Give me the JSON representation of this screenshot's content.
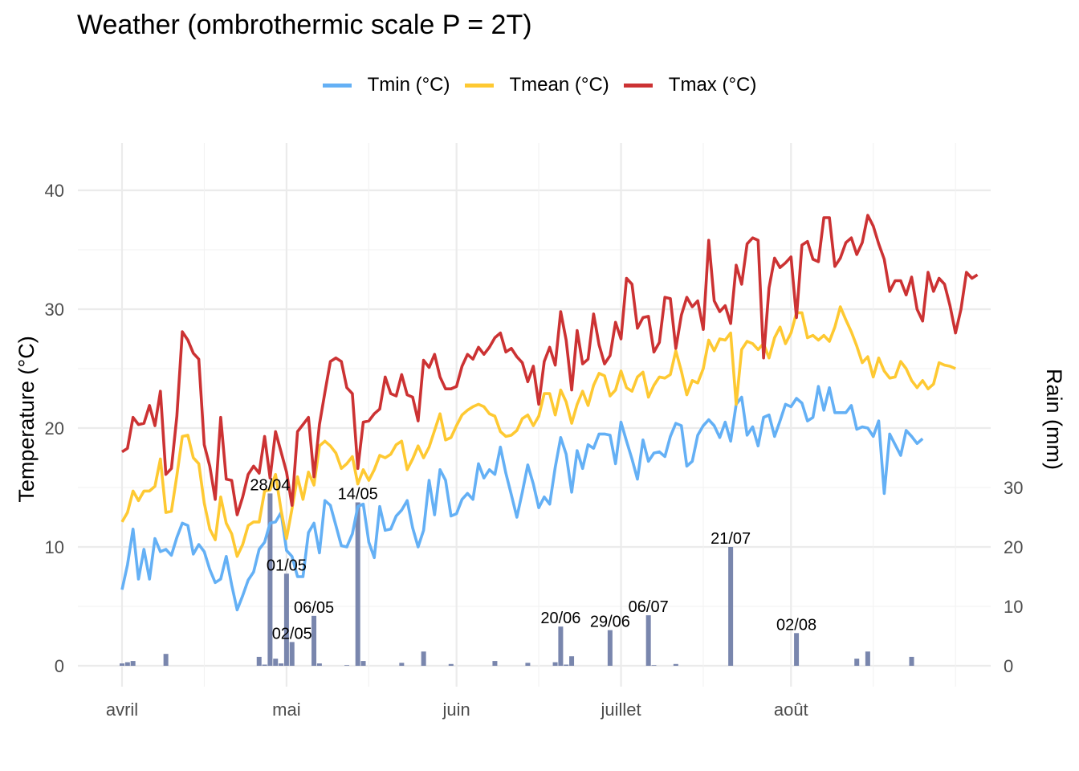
{
  "chart_data": {
    "type": "line",
    "title": "Weather (ombrothermic scale P = 2T)",
    "xlabel": "",
    "ylabel": "Temperature (°C)",
    "y2label": "Rain (mm)",
    "ylim": [
      0,
      44
    ],
    "y2lim": [
      0,
      88
    ],
    "y_ticks": [
      0,
      10,
      20,
      30,
      40
    ],
    "y2_ticks": [
      0,
      10,
      20,
      30
    ],
    "x_start": "2024-04-01",
    "x_ticks": [
      {
        "day": 0,
        "label": "avril"
      },
      {
        "day": 30,
        "label": "mai"
      },
      {
        "day": 61,
        "label": "juin"
      },
      {
        "day": 91,
        "label": "juillet"
      },
      {
        "day": 122,
        "label": "août"
      }
    ],
    "x_minor_days": [
      15,
      45,
      76,
      106,
      137,
      152
    ],
    "legend_position": "top",
    "grid": true,
    "series": [
      {
        "name": "Tmin (°C)",
        "color": "#64b0f5",
        "values": [
          6.4,
          8.5,
          11.5,
          7.3,
          9.8,
          7.3,
          10.7,
          9.6,
          9.8,
          9.3,
          10.8,
          12.0,
          11.8,
          9.4,
          10.2,
          9.6,
          8.1,
          7.0,
          7.3,
          9.2,
          6.8,
          4.7,
          5.9,
          7.2,
          7.9,
          9.8,
          10.4,
          12.0,
          12.1,
          12.9,
          9.7,
          9.2,
          7.5,
          7.5,
          11.2,
          12.0,
          9.5,
          13.9,
          13.5,
          11.8,
          10.1,
          10.0,
          11.1,
          13.4,
          13.6,
          10.4,
          9.1,
          13.4,
          11.4,
          11.5,
          12.6,
          13.1,
          13.9,
          11.6,
          10.0,
          11.4,
          15.6,
          12.7,
          16.5,
          15.6,
          12.6,
          12.8,
          14.0,
          14.5,
          14.0,
          17.0,
          15.8,
          16.5,
          16.1,
          18.4,
          16.2,
          14.4,
          12.5,
          14.6,
          16.9,
          15.3,
          13.3,
          14.2,
          13.6,
          16.7,
          19.2,
          17.8,
          14.6,
          18.1,
          16.6,
          18.6,
          18.3,
          19.5,
          19.5,
          19.4,
          17.0,
          20.5,
          18.9,
          17.4,
          15.7,
          19.0,
          17.2,
          17.9,
          18.0,
          17.6,
          19.3,
          20.4,
          20.2,
          16.8,
          17.2,
          19.4,
          20.2,
          20.7,
          20.2,
          19.2,
          20.5,
          18.9,
          22.0,
          22.6,
          19.4,
          20.1,
          18.5,
          20.9,
          21.1,
          19.3,
          20.6,
          22.0,
          21.8,
          22.5,
          22.1,
          20.6,
          20.9,
          23.5,
          21.5,
          23.4,
          21.3,
          21.3,
          21.3,
          21.9,
          19.9,
          20.1,
          20.0,
          19.3,
          20.6,
          14.5,
          19.5,
          18.6,
          17.7,
          19.8,
          19.3,
          18.7,
          19.1
        ]
      },
      {
        "name": "Tmean (°C)",
        "color": "#fec932",
        "values": [
          12.1,
          12.9,
          14.7,
          13.9,
          14.7,
          14.7,
          15.1,
          17.4,
          12.9,
          13.0,
          16.0,
          19.3,
          19.4,
          17.5,
          17.0,
          13.7,
          11.5,
          10.6,
          14.2,
          12.0,
          11.1,
          9.2,
          10.2,
          11.8,
          12.1,
          12.1,
          14.7,
          14.8,
          16.1,
          13.1,
          10.7,
          13.2,
          15.9,
          14.0,
          16.3,
          15.2,
          18.5,
          18.9,
          18.5,
          17.9,
          16.6,
          17.0,
          17.6,
          15.3,
          16.5,
          15.6,
          16.5,
          17.7,
          17.5,
          17.8,
          18.6,
          18.9,
          16.5,
          17.4,
          18.5,
          17.5,
          18.4,
          19.8,
          21.2,
          19.0,
          19.2,
          20.2,
          21.1,
          21.5,
          21.8,
          22.0,
          21.8,
          21.2,
          21.0,
          19.7,
          19.3,
          19.4,
          19.8,
          20.8,
          21.1,
          20.2,
          21.0,
          22.9,
          22.9,
          21.1,
          23.2,
          22.2,
          20.4,
          22.0,
          23.1,
          21.9,
          23.6,
          24.6,
          24.4,
          22.7,
          23.2,
          24.8,
          23.4,
          23.1,
          24.3,
          24.7,
          22.6,
          23.6,
          24.3,
          24.2,
          24.5,
          26.5,
          24.8,
          22.8,
          24.0,
          23.8,
          25.0,
          27.4,
          26.5,
          27.5,
          27.4,
          28.0,
          22.0,
          26.6,
          27.3,
          27.1,
          26.6,
          27.1,
          25.9,
          27.6,
          28.5,
          27.1,
          28.0,
          29.7,
          29.7,
          27.6,
          27.8,
          27.4,
          27.8,
          27.3,
          28.5,
          30.2,
          29.1,
          28.1,
          26.9,
          25.5,
          26.0,
          24.3,
          25.9,
          24.8,
          24.2,
          24.3,
          25.6,
          25.0,
          24.0,
          23.4,
          24.0,
          23.3,
          23.7,
          25.5,
          25.3,
          25.2,
          25.0
        ]
      },
      {
        "name": "Tmax (°C)",
        "color": "#cc3233",
        "values": [
          18.0,
          18.3,
          20.9,
          20.3,
          20.4,
          21.9,
          20.2,
          23.1,
          16.1,
          16.6,
          21.0,
          28.1,
          27.4,
          26.3,
          25.8,
          18.6,
          16.8,
          14.0,
          20.9,
          15.7,
          15.6,
          12.7,
          14.2,
          16.1,
          16.8,
          16.2,
          19.3,
          15.8,
          19.7,
          18.0,
          16.3,
          13.5,
          19.7,
          20.3,
          20.9,
          15.9,
          20.3,
          23.0,
          25.6,
          25.9,
          25.6,
          23.4,
          22.9,
          16.6,
          20.5,
          20.6,
          21.2,
          21.6,
          24.3,
          22.9,
          22.7,
          24.5,
          22.8,
          22.6,
          20.6,
          25.7,
          25.1,
          26.2,
          24.3,
          23.3,
          23.3,
          23.5,
          25.2,
          26.2,
          25.8,
          26.8,
          26.2,
          26.8,
          27.6,
          28.0,
          26.4,
          26.7,
          26.0,
          25.5,
          23.9,
          25.2,
          22.0,
          25.6,
          26.8,
          25.3,
          29.8,
          27.4,
          23.2,
          28.2,
          25.4,
          25.8,
          29.6,
          27.0,
          25.4,
          26.1,
          28.9,
          27.5,
          32.6,
          32.1,
          28.4,
          29.3,
          29.4,
          26.4,
          27.2,
          31.0,
          30.9,
          26.7,
          29.5,
          31.0,
          30.2,
          30.7,
          28.3,
          35.8,
          30.7,
          29.8,
          30.3,
          28.8,
          33.7,
          32.1,
          35.5,
          36.0,
          35.8,
          25.9,
          31.8,
          34.3,
          33.5,
          33.9,
          34.4,
          29.3,
          35.4,
          35.7,
          34.2,
          34.0,
          37.7,
          37.7,
          33.6,
          34.3,
          35.6,
          36.0,
          34.6,
          35.6,
          37.9,
          37.0,
          35.5,
          34.2,
          31.5,
          32.4,
          32.4,
          31.2,
          32.7,
          30.0,
          29.0,
          33.1,
          31.5,
          32.6,
          32.1,
          30.3,
          28.0,
          30.0,
          33.1,
          32.6,
          32.9
        ]
      }
    ],
    "rain": {
      "name": "Rain (mm)",
      "color": "#7986ad",
      "bars": [
        {
          "day": 0,
          "value": 0.4
        },
        {
          "day": 1,
          "value": 0.6
        },
        {
          "day": 2,
          "value": 0.8
        },
        {
          "day": 8,
          "value": 2.0
        },
        {
          "day": 25,
          "value": 1.5
        },
        {
          "day": 26,
          "value": 0.2
        },
        {
          "day": 27,
          "value": 29.0,
          "label": "28/04"
        },
        {
          "day": 28,
          "value": 1.2
        },
        {
          "day": 29,
          "value": 0.4
        },
        {
          "day": 30,
          "value": 15.5,
          "label": "01/05"
        },
        {
          "day": 31,
          "value": 4.0,
          "label": "02/05"
        },
        {
          "day": 35,
          "value": 8.4,
          "label": "06/05"
        },
        {
          "day": 36,
          "value": 0.4
        },
        {
          "day": 41,
          "value": 0.1
        },
        {
          "day": 43,
          "value": 27.5,
          "label": "14/05"
        },
        {
          "day": 44,
          "value": 0.8
        },
        {
          "day": 51,
          "value": 0.5
        },
        {
          "day": 55,
          "value": 2.4
        },
        {
          "day": 60,
          "value": 0.3
        },
        {
          "day": 68,
          "value": 0.8
        },
        {
          "day": 74,
          "value": 0.5
        },
        {
          "day": 79,
          "value": 0.6
        },
        {
          "day": 80,
          "value": 6.6,
          "label": "20/06"
        },
        {
          "day": 81,
          "value": 0.2
        },
        {
          "day": 82,
          "value": 1.6
        },
        {
          "day": 89,
          "value": 6.0,
          "label": "29/06"
        },
        {
          "day": 96,
          "value": 8.5,
          "label": "06/07"
        },
        {
          "day": 97,
          "value": 0.1
        },
        {
          "day": 101,
          "value": 0.3
        },
        {
          "day": 111,
          "value": 20.0,
          "label": "21/07"
        },
        {
          "day": 123,
          "value": 5.5,
          "label": "02/08"
        },
        {
          "day": 134,
          "value": 1.2
        },
        {
          "day": 136,
          "value": 2.4
        },
        {
          "day": 144,
          "value": 1.5
        }
      ]
    }
  }
}
